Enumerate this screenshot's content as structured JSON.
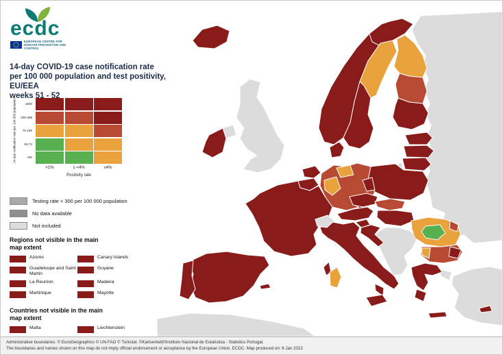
{
  "logo": {
    "wordmark": "ecdc",
    "subtitle": "EUROPEAN CENTRE FOR DISEASE PREVENTION AND CONTROL"
  },
  "title": {
    "line1": "14-day COVID-19 case notification rate",
    "line2": "per 100 000 population and test positivity, EU/EEA",
    "line3": "weeks 51 - 52"
  },
  "matrix": {
    "y_axis_label": "14-day notification rate per 100 000 population",
    "x_axis_label": "Positivity rate",
    "col_labels": [
      "<1%",
      "1-<4%",
      "≥4%"
    ],
    "row_labels": [
      "≥500",
      "200-499",
      "75-199",
      "50-74",
      "<50"
    ],
    "cells": [
      [
        "darkred",
        "darkred",
        "darkred"
      ],
      [
        "red",
        "red",
        "darkred"
      ],
      [
        "orange",
        "orange",
        "red"
      ],
      [
        "green",
        "orange",
        "orange"
      ],
      [
        "green",
        "green",
        "orange"
      ]
    ]
  },
  "extra_legend": [
    {
      "color_key": "gray_testing",
      "label": "Testing rate < 300 per 100 000 population"
    },
    {
      "color_key": "gray_nodata",
      "label": "No data available"
    },
    {
      "color_key": "notincluded",
      "label": "Not included"
    }
  ],
  "regions": {
    "heading": "Regions not visible in the main map extent",
    "items": [
      "Azores",
      "Canary Islands",
      "Guadeloupe and Saint Martin",
      "Guyane",
      "La Reunion",
      "Madeira",
      "Martinique",
      "Mayotte"
    ]
  },
  "countries": {
    "heading": "Countries not visible in the main map extent",
    "items": [
      "Malta",
      "Liechtenstein"
    ]
  },
  "footer": {
    "line1": "Administrative boundaries: © EuroGeographics © UN-FAO © Turkstat. ©Kartverket|©Instituto Nacional de Estatística - Statistics Portugal.",
    "line2": "The boundaries and names shown on this map do not imply official endorsement or acceptance by the European Union. ECDC. Map produced on: 6 Jan 2022"
  },
  "palette": {
    "darkred": "#8a1b1b",
    "red": "#b84a33",
    "orange": "#e9a23c",
    "green": "#58b050",
    "gray_testing": "#a9a9a9",
    "gray_nodata": "#8f8f8f",
    "notincluded": "#dcdcdc",
    "sea": "#ffffff"
  },
  "map": {
    "regions": {
      "east_mass": "notincluded",
      "turkey": "notincluded",
      "turkey_eu": "notincluded",
      "africa": "notincluded",
      "uk": "notincluded",
      "n_ireland": "notincluded",
      "kaliningrad": "notincluded",
      "switzerland": "notincluded",
      "west_balkans": "notincluded",
      "iceland": "darkred",
      "ireland": "darkred",
      "norway_south": "darkred",
      "norway_north": "darkred",
      "sweden_north": "orange",
      "sweden_south": "darkred",
      "finland_north": "orange",
      "finland_mid": "red",
      "finland_south": "darkred",
      "estonia": "darkred",
      "latvia": "darkred",
      "lithuania": "darkred",
      "poland": "darkred",
      "germany": "red",
      "germany_north": "orange",
      "germany_west": "orange",
      "germany_east": "darkred",
      "germany_south": "darkred",
      "denmark": "darkred",
      "netherlands": "darkred",
      "belgium": "darkred",
      "luxembourg": "darkred",
      "france": "darkred",
      "corsica": "darkred",
      "czechia": "darkred",
      "slovakia": "red",
      "austria": "darkred",
      "hungary": "darkred",
      "italy": "darkred",
      "italy_toe": "darkred",
      "sicily": "darkred",
      "sardinia": "orange",
      "slovenia": "darkred",
      "croatia": "darkred",
      "romania": "orange",
      "romania_center": "green",
      "romania_east": "red",
      "bulgaria": "red",
      "bulgaria_west": "orange",
      "bulgaria_east": "darkred",
      "greece": "darkred",
      "peloponnese": "darkred",
      "crete": "darkred",
      "spain": "darkred",
      "portugal": "darkred",
      "balearics": "darkred",
      "cyprus": "darkred"
    }
  }
}
